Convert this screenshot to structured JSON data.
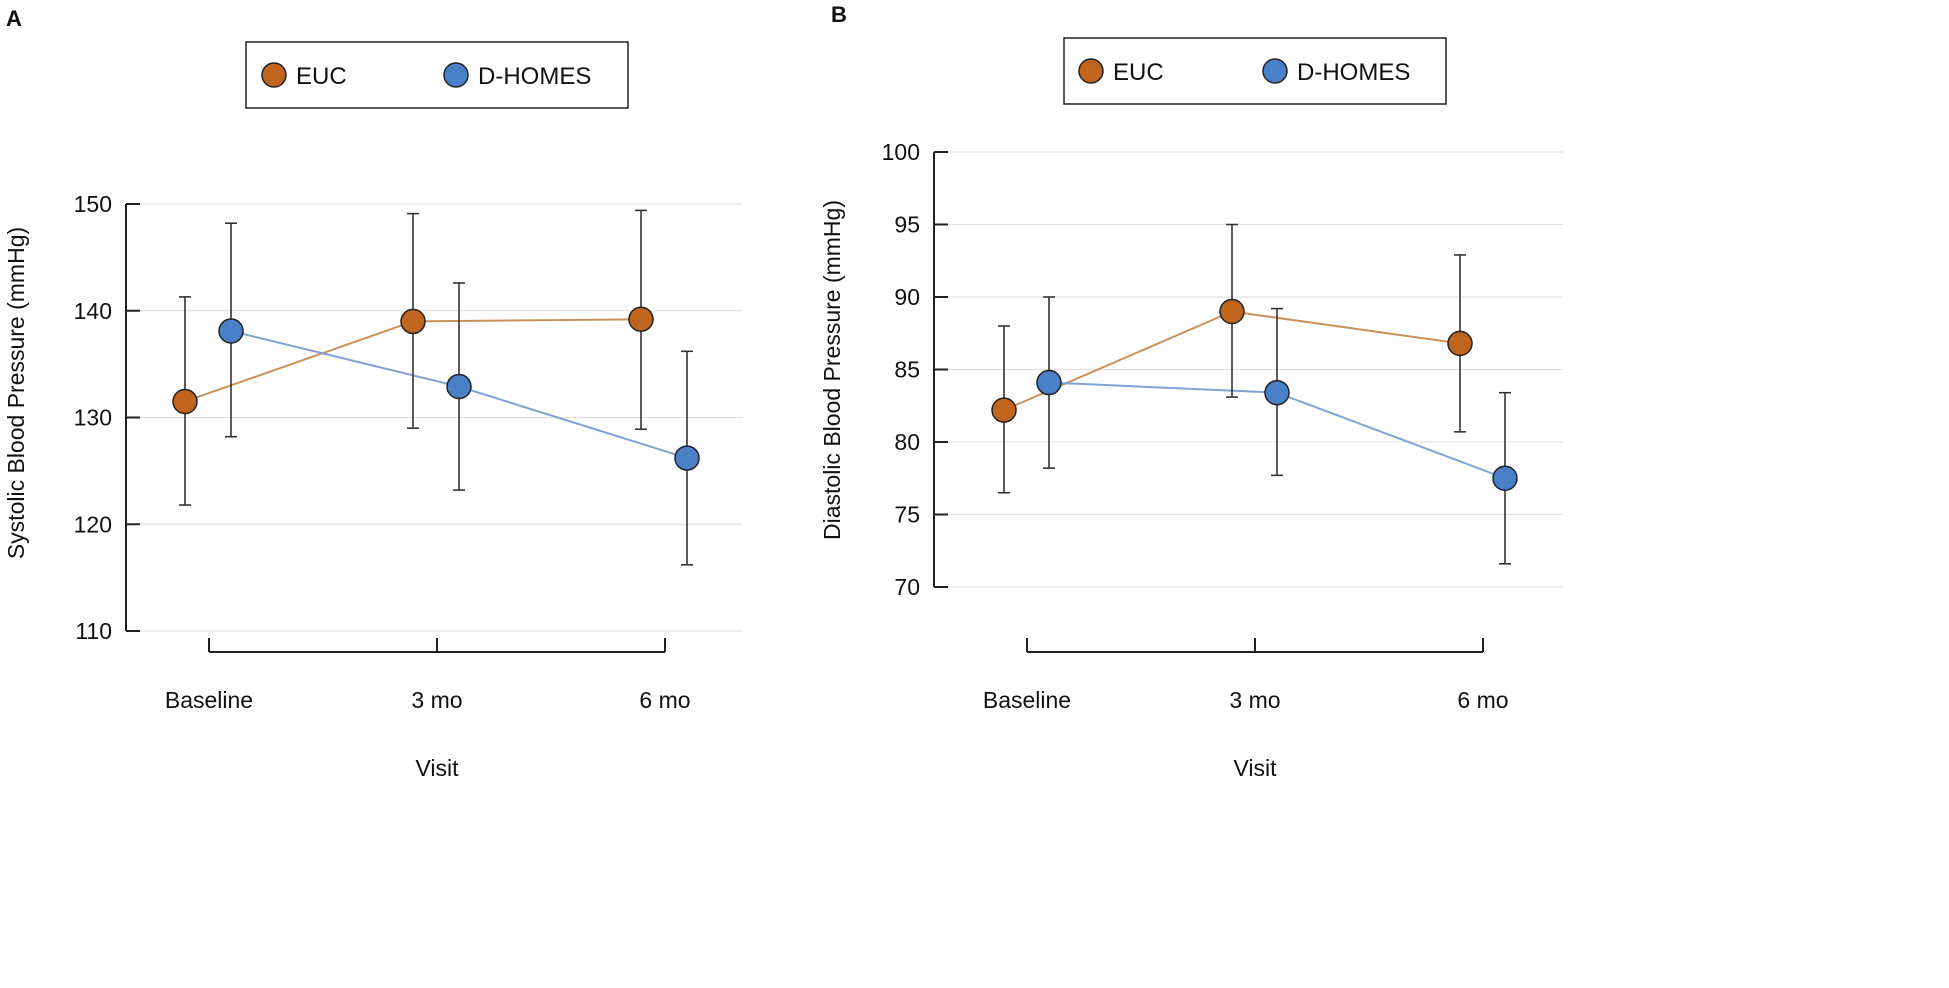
{
  "figure": {
    "colors": {
      "EUC": "#C0651E",
      "D-HOMES": "#4A80C8",
      "euc_line": "#C9925C",
      "dhomes_line": "#7FA3D6",
      "grid": "#e3e3e3",
      "axis": "#222222",
      "errorbar": "#333333"
    }
  },
  "chart_data": [
    {
      "panel_label": "A",
      "type": "line",
      "title": "",
      "xlabel": "Visit",
      "ylabel": "Systolic Blood Pressure (mmHg)",
      "categories": [
        "Baseline",
        "3 mo",
        "6 mo"
      ],
      "ylim": [
        110,
        150
      ],
      "yticks": [
        110,
        120,
        130,
        140,
        150
      ],
      "grid": true,
      "legend": {
        "position": "top-center",
        "entries": [
          "EUC",
          "D-HOMES"
        ]
      },
      "series": [
        {
          "name": "EUC",
          "values": [
            131.5,
            139.0,
            139.2
          ],
          "lower": [
            121.8,
            129.0,
            128.9
          ],
          "upper": [
            141.3,
            149.1,
            149.4
          ]
        },
        {
          "name": "D-HOMES",
          "values": [
            138.1,
            132.9,
            126.2
          ],
          "lower": [
            128.2,
            123.2,
            116.2
          ],
          "upper": [
            148.2,
            142.6,
            136.2
          ]
        }
      ]
    },
    {
      "panel_label": "B",
      "type": "line",
      "title": "",
      "xlabel": "Visit",
      "ylabel": "Diastolic Blood Pressure (mmHg)",
      "categories": [
        "Baseline",
        "3 mo",
        "6 mo"
      ],
      "ylim": [
        70,
        100
      ],
      "yticks": [
        70,
        75,
        80,
        85,
        90,
        95,
        100
      ],
      "grid": true,
      "legend": {
        "position": "top-center",
        "entries": [
          "EUC",
          "D-HOMES"
        ]
      },
      "series": [
        {
          "name": "EUC",
          "values": [
            82.2,
            89.0,
            86.8
          ],
          "lower": [
            76.5,
            83.1,
            80.7
          ],
          "upper": [
            88.0,
            95.0,
            92.9
          ]
        },
        {
          "name": "D-HOMES",
          "values": [
            84.1,
            83.4,
            77.5
          ],
          "lower": [
            78.2,
            77.7,
            71.6
          ],
          "upper": [
            90.0,
            89.2,
            83.4
          ]
        }
      ]
    }
  ]
}
